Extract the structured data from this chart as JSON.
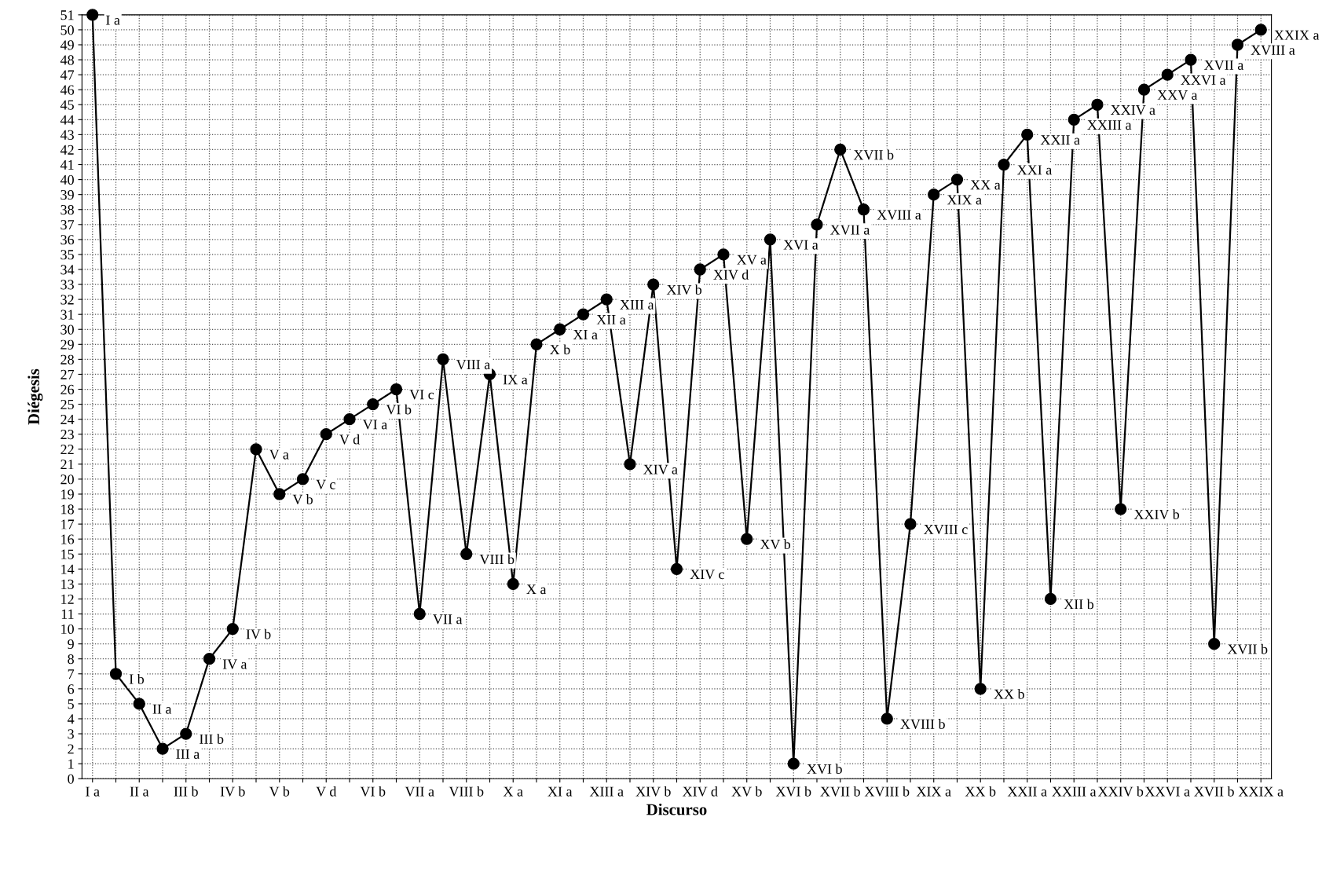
{
  "chart_data": {
    "type": "line",
    "xlabel": "Discurso",
    "ylabel": "Diégesis",
    "categories": [
      "I a",
      null,
      "II a",
      null,
      "III b",
      null,
      "IV b",
      null,
      "V b",
      null,
      "V d",
      null,
      "VI b",
      null,
      "VII a",
      null,
      "VIII b",
      null,
      "X a",
      null,
      "XI a",
      null,
      "XIII a",
      null,
      "XIV b",
      null,
      "XIV d",
      null,
      "XV b",
      null,
      "XVI b",
      null,
      "XVII b",
      null,
      "XVIII b",
      null,
      "XIX a",
      null,
      "XX b",
      null,
      "XXII a",
      null,
      "XXIII a",
      null,
      "XXIV b",
      null,
      "XXVI a",
      null,
      "XVII b",
      null,
      "XXIX a"
    ],
    "series": [
      {
        "color": "#000000",
        "values": [
          51,
          7,
          5,
          2,
          3,
          8,
          10,
          22,
          19,
          20,
          23,
          24,
          25,
          26,
          11,
          28,
          15,
          27,
          13,
          29,
          30,
          31,
          32,
          21,
          33,
          14,
          34,
          35,
          16,
          36,
          1,
          37,
          42,
          38,
          4,
          17,
          39,
          40,
          6,
          41,
          43,
          12,
          44,
          45,
          18,
          46,
          47,
          48,
          9,
          49,
          50
        ],
        "value_labels": [
          "I a",
          "I b",
          "II a",
          "III a",
          "III b",
          "IV a",
          "IV b",
          "V a",
          "V b",
          "V c",
          "V d",
          "VI a",
          "VI b",
          "VI c",
          "VII a",
          "VIII a",
          "VIII b",
          "IX a",
          "X a",
          "X b",
          "XI a",
          "XII a",
          "XIII a",
          "XIV a",
          "XIV b",
          "XIV c",
          "XIV d",
          "XV a",
          "XV b",
          "XVI a",
          "XVI b",
          "XVII a",
          "XVII b",
          "XVIII a",
          "XVIII b",
          "XVIII c",
          "XIX a",
          "XX a",
          "XX b",
          "XXI a",
          "XXII a",
          "XII b",
          "XXIII a",
          "XXIV a",
          "XXIV b",
          "XXV a",
          "XXVI a",
          "XVII a",
          "XVII b",
          "XVIII a",
          "XXIX a"
        ]
      }
    ],
    "ylim": [
      0,
      51
    ],
    "yticks": [
      0,
      1,
      2,
      3,
      4,
      5,
      6,
      7,
      8,
      9,
      10,
      11,
      12,
      13,
      14,
      15,
      16,
      17,
      18,
      19,
      20,
      21,
      22,
      23,
      24,
      25,
      26,
      27,
      28,
      29,
      30,
      31,
      32,
      33,
      34,
      35,
      36,
      37,
      38,
      39,
      40,
      41,
      42,
      43,
      44,
      45,
      46,
      47,
      48,
      49,
      50,
      51
    ],
    "grid": true,
    "marker": "circle",
    "line_style": "solid"
  }
}
